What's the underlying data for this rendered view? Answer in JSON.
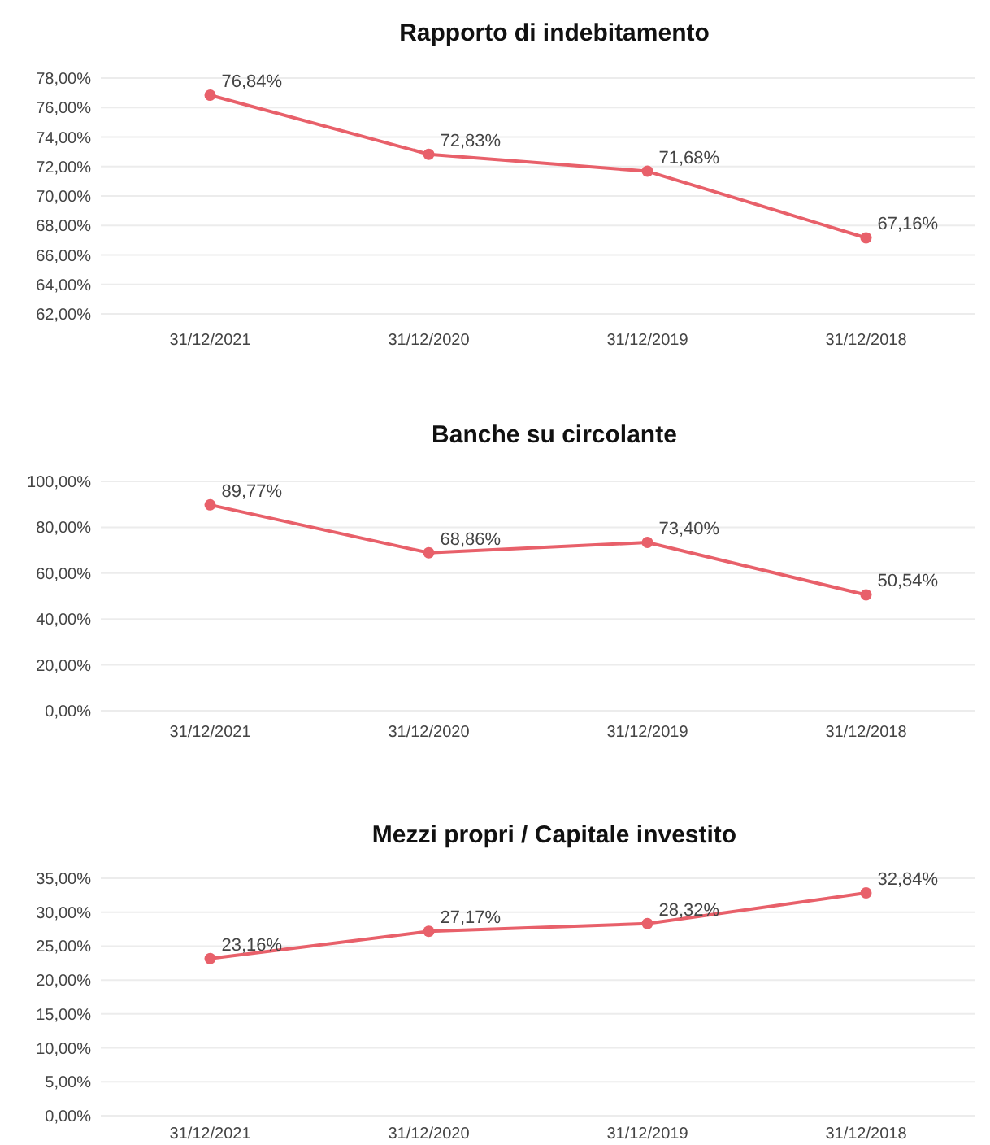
{
  "chart_data": [
    {
      "type": "line",
      "title": "Rapporto di indebitamento",
      "categories": [
        "31/12/2021",
        "31/12/2020",
        "31/12/2019",
        "31/12/2018"
      ],
      "series": [
        {
          "color": "#e8606a",
          "values": [
            76.84,
            72.83,
            71.68,
            67.16
          ],
          "value_labels": [
            "76,84%",
            "72,83%",
            "71,68%",
            "67,16%"
          ]
        }
      ],
      "ylim": [
        62,
        78
      ],
      "yticks": [
        {
          "value": 62,
          "label": "62,00%"
        },
        {
          "value": 64,
          "label": "64,00%"
        },
        {
          "value": 66,
          "label": "66,00%"
        },
        {
          "value": 68,
          "label": "68,00%"
        },
        {
          "value": 70,
          "label": "70,00%"
        },
        {
          "value": 72,
          "label": "72,00%"
        },
        {
          "value": 74,
          "label": "74,00%"
        },
        {
          "value": 76,
          "label": "76,00%"
        },
        {
          "value": 78,
          "label": "78,00%"
        }
      ],
      "grid": "y",
      "marker": "circle",
      "line_style": "solid"
    },
    {
      "type": "line",
      "title": "Banche su circolante",
      "categories": [
        "31/12/2021",
        "31/12/2020",
        "31/12/2019",
        "31/12/2018"
      ],
      "series": [
        {
          "color": "#e8606a",
          "values": [
            89.77,
            68.86,
            73.4,
            50.54
          ],
          "value_labels": [
            "89,77%",
            "68,86%",
            "73,40%",
            "50,54%"
          ]
        }
      ],
      "ylim": [
        0,
        100
      ],
      "yticks": [
        {
          "value": 0,
          "label": "0,00%"
        },
        {
          "value": 20,
          "label": "20,00%"
        },
        {
          "value": 40,
          "label": "40,00%"
        },
        {
          "value": 60,
          "label": "60,00%"
        },
        {
          "value": 80,
          "label": "80,00%"
        },
        {
          "value": 100,
          "label": "100,00%"
        }
      ],
      "grid": "y",
      "marker": "circle",
      "line_style": "solid"
    },
    {
      "type": "line",
      "title": "Mezzi propri / Capitale investito",
      "categories": [
        "31/12/2021",
        "31/12/2020",
        "31/12/2019",
        "31/12/2018"
      ],
      "series": [
        {
          "color": "#e8606a",
          "values": [
            23.16,
            27.17,
            28.32,
            32.84
          ],
          "value_labels": [
            "23,16%",
            "27,17%",
            "28,32%",
            "32,84%"
          ]
        }
      ],
      "ylim": [
        0,
        35
      ],
      "yticks": [
        {
          "value": 0,
          "label": "0,00%"
        },
        {
          "value": 5,
          "label": "5,00%"
        },
        {
          "value": 10,
          "label": "10,00%"
        },
        {
          "value": 15,
          "label": "15,00%"
        },
        {
          "value": 20,
          "label": "20,00%"
        },
        {
          "value": 25,
          "label": "25,00%"
        },
        {
          "value": 30,
          "label": "30,00%"
        },
        {
          "value": 35,
          "label": "35,00%"
        }
      ],
      "grid": "y",
      "marker": "circle",
      "line_style": "solid"
    }
  ]
}
